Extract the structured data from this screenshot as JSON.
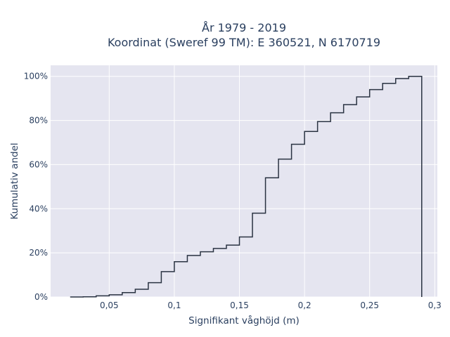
{
  "chart_data": {
    "type": "line",
    "subtype": "cumulative-step-histogram",
    "title_lines": [
      "År 1979 - 2019",
      "Koordinat (Sweref 99 TM): E 360521, N 6170719"
    ],
    "xlabel": "Signifikant våghöjd (m)",
    "ylabel": "Kumulativ andel",
    "xlim": [
      0.005,
      0.302
    ],
    "ylim": [
      0,
      1.05
    ],
    "x_ticks": [
      0.05,
      0.1,
      0.15,
      0.2,
      0.25,
      0.3
    ],
    "x_tick_labels": [
      "0,05",
      "0,1",
      "0,15",
      "0,2",
      "0,25",
      "0,3"
    ],
    "y_ticks": [
      0,
      0.2,
      0.4,
      0.6,
      0.8,
      1.0
    ],
    "y_tick_labels": [
      "0%",
      "20%",
      "40%",
      "60%",
      "80%",
      "100%"
    ],
    "grid": true,
    "colors": {
      "background": "#e5e5f0",
      "grid": "#ffffff",
      "line": "#2a3342",
      "text": "#2a3f5f"
    },
    "bin_edges": [
      0.02,
      0.03,
      0.04,
      0.05,
      0.06,
      0.07,
      0.08,
      0.09,
      0.1,
      0.11,
      0.12,
      0.13,
      0.14,
      0.15,
      0.16,
      0.17,
      0.18,
      0.19,
      0.2,
      0.21,
      0.22,
      0.23,
      0.24,
      0.25,
      0.26,
      0.27,
      0.28,
      0.29
    ],
    "cumulative": [
      0.0,
      0.001,
      0.005,
      0.01,
      0.02,
      0.035,
      0.065,
      0.115,
      0.16,
      0.188,
      0.205,
      0.22,
      0.235,
      0.272,
      0.38,
      0.54,
      0.625,
      0.692,
      0.75,
      0.795,
      0.835,
      0.872,
      0.907,
      0.94,
      0.968,
      0.99,
      1.0
    ]
  }
}
